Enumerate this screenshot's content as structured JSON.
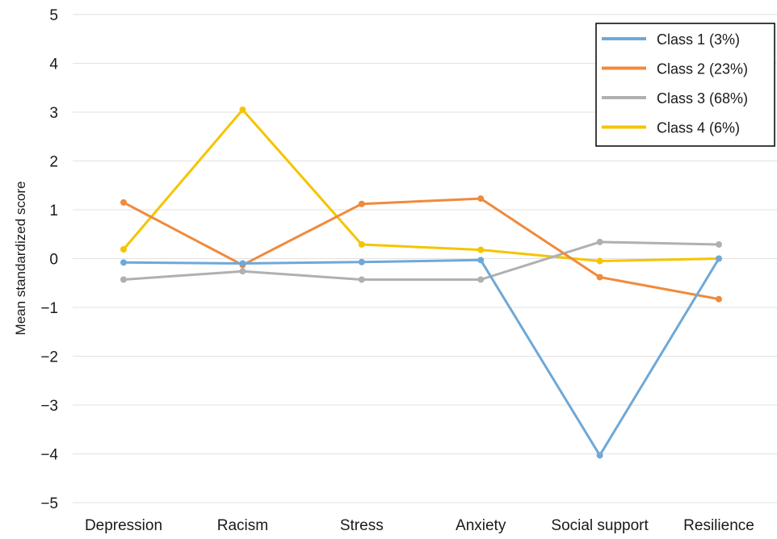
{
  "chart_data": {
    "type": "line",
    "title": "",
    "xlabel": "",
    "ylabel": "Mean standardized score",
    "ylim": [
      -5,
      5
    ],
    "yticks": [
      {
        "value": 5,
        "label": "5"
      },
      {
        "value": 4,
        "label": "4"
      },
      {
        "value": 3,
        "label": "3"
      },
      {
        "value": 2,
        "label": "2"
      },
      {
        "value": 1,
        "label": "1"
      },
      {
        "value": 0,
        "label": "0"
      },
      {
        "value": -1,
        "label": "−1"
      },
      {
        "value": -2,
        "label": "−2"
      },
      {
        "value": -3,
        "label": "−3"
      },
      {
        "value": -4,
        "label": "−4"
      },
      {
        "value": -5,
        "label": "−5"
      }
    ],
    "grid": "horizontal",
    "legend_position": "top-right",
    "categories": [
      "Depression",
      "Racism",
      "Stress",
      "Anxiety",
      "Social support",
      "Resilience"
    ],
    "series": [
      {
        "name": "Class 1 (3%)",
        "color": "#6fa8d8",
        "values": [
          -0.08,
          -0.1,
          -0.07,
          -0.03,
          -4.03,
          0.0
        ]
      },
      {
        "name": "Class 2 (23%)",
        "color": "#f08a3c",
        "values": [
          1.15,
          -0.13,
          1.12,
          1.23,
          -0.38,
          -0.83
        ]
      },
      {
        "name": "Class 3 (68%)",
        "color": "#b0b0b0",
        "values": [
          -0.43,
          -0.26,
          -0.43,
          -0.43,
          0.34,
          0.29
        ]
      },
      {
        "name": "Class 4 (6%)",
        "color": "#f5c400",
        "values": [
          0.19,
          3.05,
          0.29,
          0.18,
          -0.05,
          0.0
        ]
      }
    ]
  }
}
